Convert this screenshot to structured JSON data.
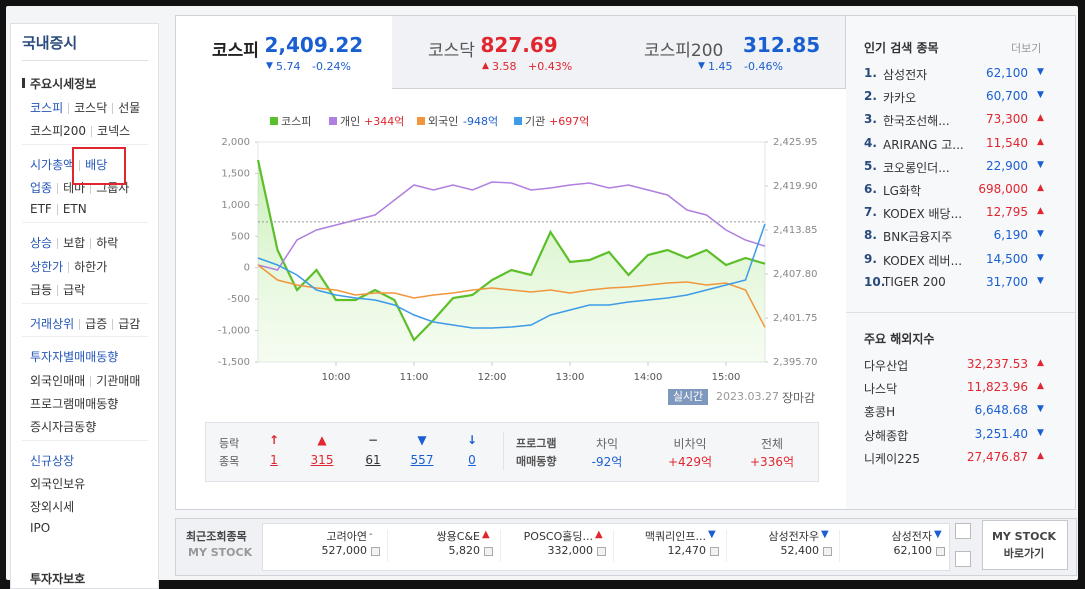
{
  "sidebar": {
    "title": "국내증시",
    "sections": [
      {
        "heading": "주요시세정보",
        "rows": [
          [
            "코스피",
            "코스닥",
            "선물"
          ],
          [
            "코스피200",
            "코넥스"
          ]
        ]
      },
      {
        "rows": [
          [
            "시가총액",
            "배당"
          ],
          [
            "업종",
            "테마",
            "그룹사"
          ],
          [
            "ETF",
            "ETN"
          ]
        ]
      },
      {
        "rows": [
          [
            "상승",
            "보합",
            "하락"
          ],
          [
            "상한가",
            "하한가"
          ],
          [
            "급등",
            "급락"
          ]
        ]
      },
      {
        "rows": [
          [
            "거래상위",
            "급증",
            "급감"
          ]
        ]
      },
      {
        "rows": [
          [
            "투자자별매매동향"
          ],
          [
            "외국인매매",
            "기관매매"
          ],
          [
            "프로그램매매동향"
          ],
          [
            "증시자금동향"
          ]
        ]
      },
      {
        "rows": [
          [
            "신규상장"
          ],
          [
            "외국인보유"
          ],
          [
            "장외시세"
          ],
          [
            "IPO"
          ]
        ]
      }
    ],
    "footer": "투자자보호"
  },
  "tabs": [
    {
      "name": "코스피",
      "value": "2,409.22",
      "dir": "▼",
      "change": "5.74",
      "rate": "-0.24%"
    },
    {
      "name": "코스닥",
      "value": "827.69",
      "dir": "▲",
      "change": "3.58",
      "rate": "+0.43%"
    },
    {
      "name": "코스피200",
      "value": "312.85",
      "dir": "▼",
      "change": "1.45",
      "rate": "-0.46%"
    }
  ],
  "chart_data": {
    "type": "line",
    "x": [
      "09:00",
      "09:15",
      "09:30",
      "09:45",
      "10:00",
      "10:15",
      "10:30",
      "10:45",
      "11:00",
      "11:15",
      "11:30",
      "11:45",
      "12:00",
      "12:15",
      "12:30",
      "12:45",
      "13:00",
      "13:15",
      "13:30",
      "13:45",
      "14:00",
      "14:15",
      "14:30",
      "14:45",
      "15:00",
      "15:15",
      "15:30"
    ],
    "xlim": [
      "09:00",
      "15:30"
    ],
    "xticks": [
      "10:00",
      "11:00",
      "12:00",
      "13:00",
      "14:00",
      "15:00"
    ],
    "ylim": [
      -1500,
      2000
    ],
    "yticks": [
      {
        "value": 2000,
        "label": "2,000"
      },
      {
        "value": 1500,
        "label": "1,500"
      },
      {
        "value": 1000,
        "label": "1,000"
      },
      500,
      0,
      -500,
      {
        "value": -1000,
        "label": "-1,000"
      },
      {
        "value": -1500,
        "label": "-1,500"
      }
    ],
    "y2lim": [
      2395.7,
      2425.95
    ],
    "y2ticks": [
      {
        "value": 2425.95,
        "label": "2,425.95"
      },
      {
        "value": 2419.9,
        "label": "2,419.90"
      },
      {
        "value": 2413.85,
        "label": "2,413.85"
      },
      {
        "value": 2407.8,
        "label": "2,407.80"
      },
      {
        "value": 2401.75,
        "label": "2,401.75"
      },
      {
        "value": 2395.7,
        "label": "2,395.70"
      }
    ],
    "reference_line": 2414.96,
    "grid": false,
    "series": [
      {
        "name": "코스피",
        "color": "#5cbf2a",
        "axis": "y2",
        "area": true,
        "values": [
          2423.48,
          2411.1,
          2405.6,
          2408.35,
          2404.23,
          2404.23,
          2405.6,
          2404.23,
          2398.73,
          2401.48,
          2404.5,
          2404.91,
          2406.98,
          2408.35,
          2407.66,
          2413.58,
          2409.45,
          2409.73,
          2410.83,
          2407.66,
          2410.41,
          2411.1,
          2410.0,
          2411.1,
          2409.04,
          2410.0,
          2409.22
        ]
      },
      {
        "name": "개인",
        "legend_value": "+344억",
        "color": "#b07fe0",
        "values": [
          43,
          -36,
          441,
          600,
          680,
          759,
          839,
          1077,
          1316,
          1236,
          1316,
          1236,
          1364,
          1348,
          1236,
          1268,
          1316,
          1348,
          1268,
          1316,
          1236,
          1157,
          918,
          839,
          600,
          441,
          344
        ]
      },
      {
        "name": "외국인",
        "legend_value": "-948억",
        "color": "#f0963c",
        "values": [
          43,
          -195,
          -275,
          -323,
          -355,
          -434,
          -402,
          -402,
          -482,
          -434,
          -402,
          -355,
          -323,
          -355,
          -386,
          -355,
          -402,
          -355,
          -323,
          -307,
          -275,
          -243,
          -227,
          -275,
          -243,
          -355,
          -948
        ]
      },
      {
        "name": "기관",
        "legend_value": "+697억",
        "color": "#3d9be9",
        "values": [
          155,
          43,
          -116,
          -355,
          -434,
          -482,
          -514,
          -593,
          -752,
          -864,
          -911,
          -959,
          -959,
          -943,
          -911,
          -752,
          -673,
          -593,
          -593,
          -545,
          -514,
          -482,
          -434,
          -355,
          -275,
          -195,
          697
        ]
      }
    ],
    "status": "실시간",
    "date": "2023.03.27",
    "session": "장마감"
  },
  "breadth": {
    "title": [
      "등락",
      "종목"
    ],
    "items": [
      {
        "symbol": "↑",
        "value": "1"
      },
      {
        "symbol": "▲",
        "value": "315"
      },
      {
        "symbol": "−",
        "value": "61"
      },
      {
        "symbol": "▼",
        "value": "557"
      },
      {
        "symbol": "↓",
        "value": "0"
      }
    ]
  },
  "program": {
    "title": [
      "프로그램",
      "매매동향"
    ],
    "items": [
      {
        "label": "차익",
        "value": "-92억"
      },
      {
        "label": "비차익",
        "value": "+429억"
      },
      {
        "label": "전체",
        "value": "+336억"
      }
    ]
  },
  "popular": {
    "title": "인기 검색 종목",
    "more": "더보기",
    "items": [
      {
        "rank": "1.",
        "name": "삼성전자",
        "price": "62,100",
        "dir": "▼"
      },
      {
        "rank": "2.",
        "name": "카카오",
        "price": "60,700",
        "dir": "▼"
      },
      {
        "rank": "3.",
        "name": "한국조선해...",
        "price": "73,300",
        "dir": "▲"
      },
      {
        "rank": "4.",
        "name": "ARIRANG 고...",
        "price": "11,540",
        "dir": "▲"
      },
      {
        "rank": "5.",
        "name": "코오롱인더...",
        "price": "22,900",
        "dir": "▼"
      },
      {
        "rank": "6.",
        "name": "LG화학",
        "price": "698,000",
        "dir": "▲"
      },
      {
        "rank": "7.",
        "name": "KODEX 배당...",
        "price": "12,795",
        "dir": "▲"
      },
      {
        "rank": "8.",
        "name": "BNK금융지주",
        "price": "6,190",
        "dir": "▼"
      },
      {
        "rank": "9.",
        "name": "KODEX 레버...",
        "price": "14,500",
        "dir": "▼"
      },
      {
        "rank": "10.",
        "name": "TIGER 200",
        "price": "31,700",
        "dir": "▼"
      }
    ]
  },
  "world": {
    "title": "주요 해외지수",
    "items": [
      {
        "name": "다우산업",
        "value": "32,237.53",
        "dir": "▲"
      },
      {
        "name": "나스닥",
        "value": "11,823.96",
        "dir": "▲"
      },
      {
        "name": "홍콩H",
        "value": "6,648.68",
        "dir": "▼"
      },
      {
        "name": "상해종합",
        "value": "3,251.40",
        "dir": "▼"
      },
      {
        "name": "니케이225",
        "value": "27,476.87",
        "dir": "▲"
      }
    ]
  },
  "recent": {
    "title": "최근조회종목",
    "subtitle": "MY STOCK",
    "items": [
      {
        "name": "고려아연",
        "dir": "-",
        "price": "527,000"
      },
      {
        "name": "쌍용C&E",
        "dir": "▲",
        "price": "5,820"
      },
      {
        "name": "POSCO홀딩...",
        "dir": "▲",
        "price": "332,000"
      },
      {
        "name": "맥쿼리인프...",
        "dir": "▼",
        "price": "12,470"
      },
      {
        "name": "삼성전자우",
        "dir": "▼",
        "price": "52,400"
      },
      {
        "name": "삼성전자",
        "dir": "▼",
        "price": "62,100"
      }
    ],
    "button": [
      "MY STOCK",
      "바로가기"
    ]
  }
}
